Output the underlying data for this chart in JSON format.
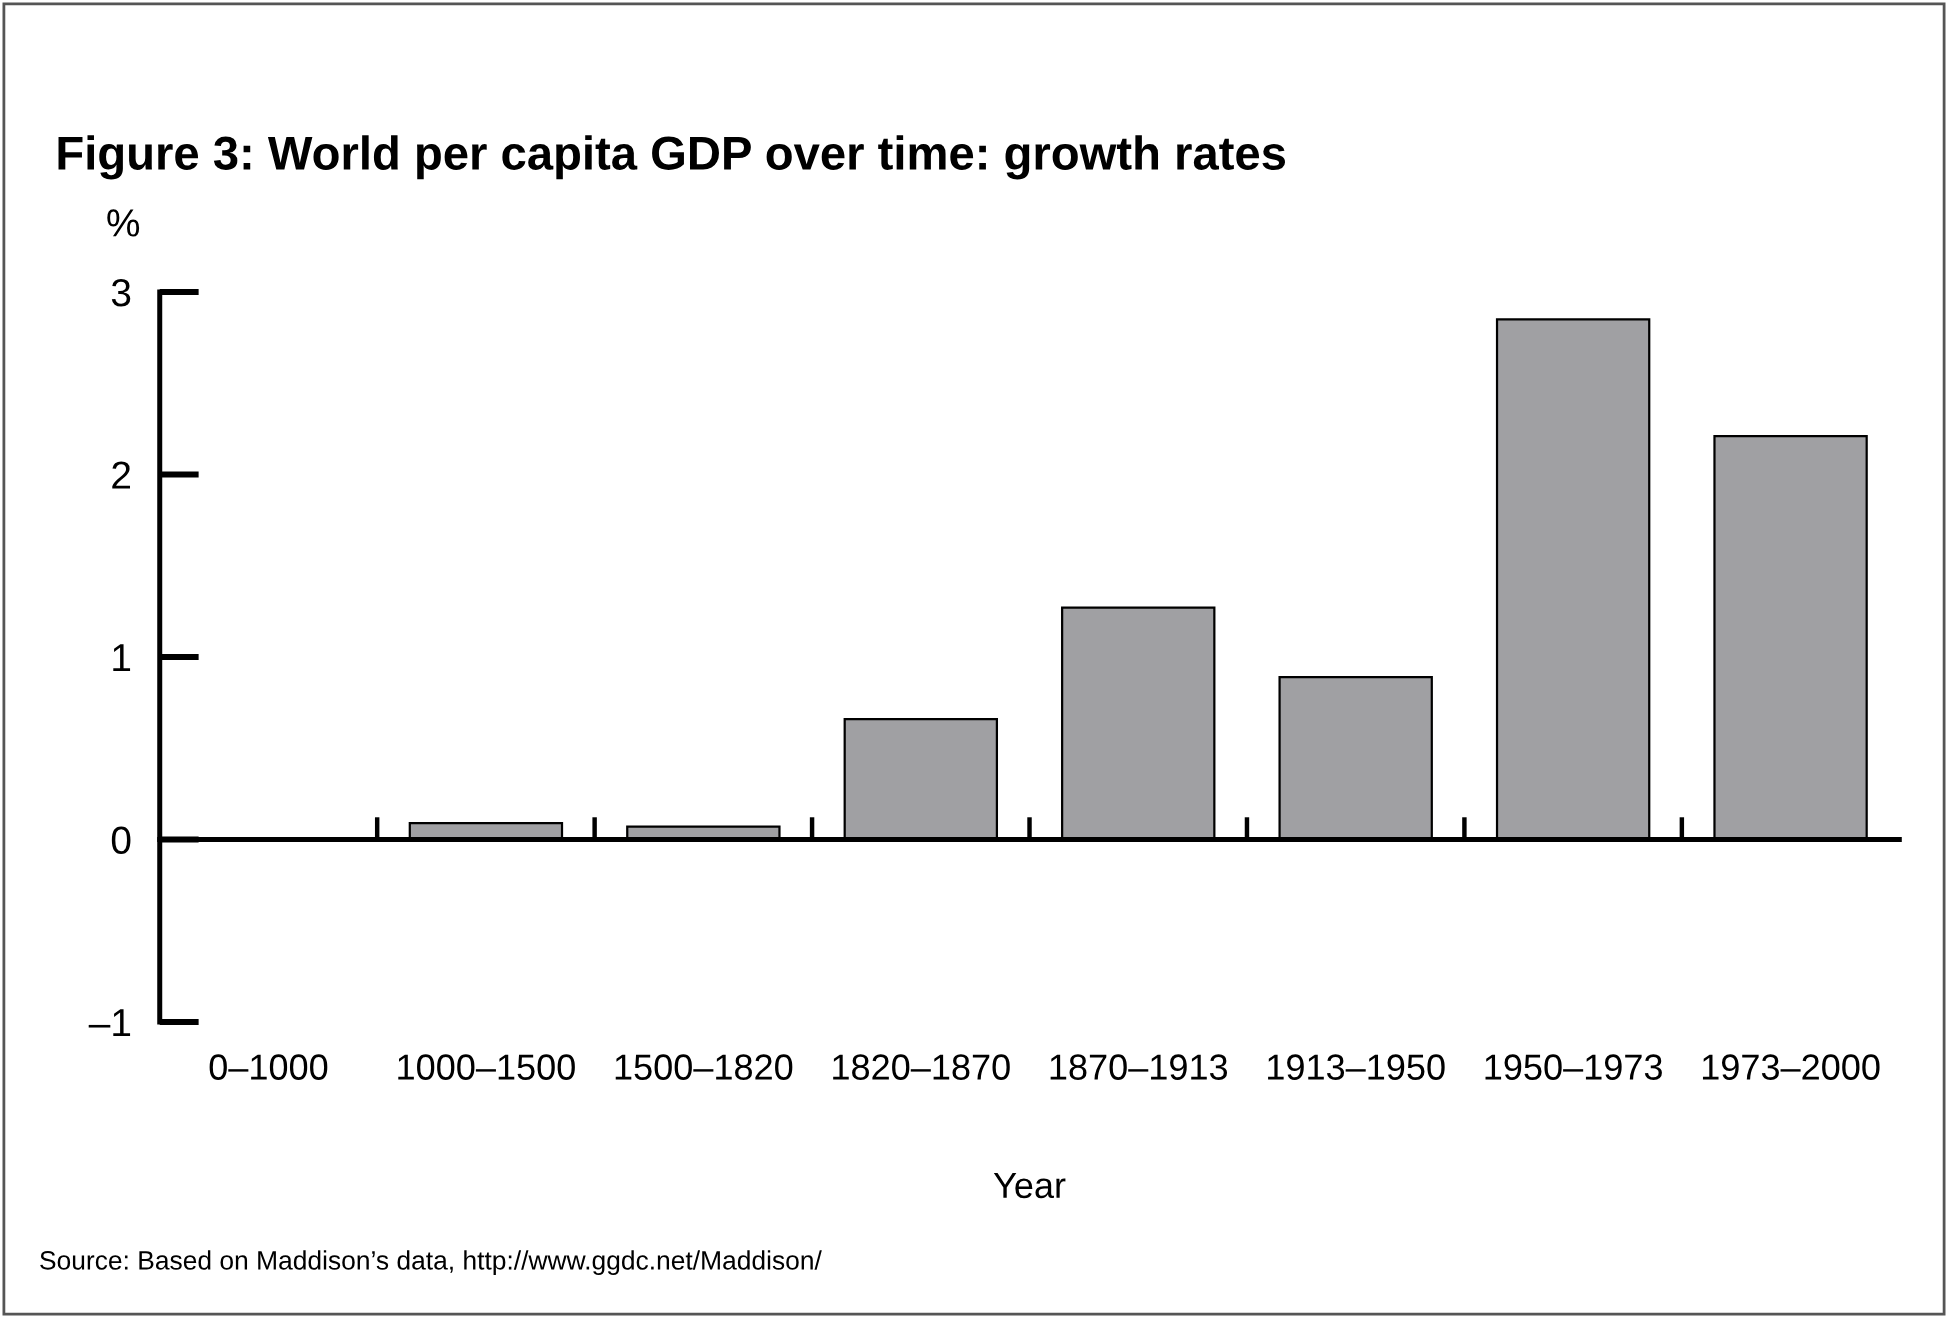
{
  "chart_data": {
    "type": "bar",
    "title": "Figure 3: World per capita GDP over time: growth rates",
    "categories": [
      "0–1000",
      "1000–1500",
      "1500–1820",
      "1820–1870",
      "1870–1913",
      "1913–1950",
      "1950–1973",
      "1973–2000"
    ],
    "values": [
      0,
      0.09,
      0.07,
      0.66,
      1.27,
      0.89,
      2.85,
      2.21
    ],
    "color": "#a0a0a3",
    "ylim": [
      -1,
      3
    ],
    "yticks": [
      {
        "value": -1,
        "label": "–1"
      },
      0,
      1,
      2,
      3
    ],
    "ylabel": "%",
    "xlabel": "Year",
    "annotations": [
      "Source: Based on Maddison’s data, http://www.ggdc.net/Maddison/"
    ]
  }
}
